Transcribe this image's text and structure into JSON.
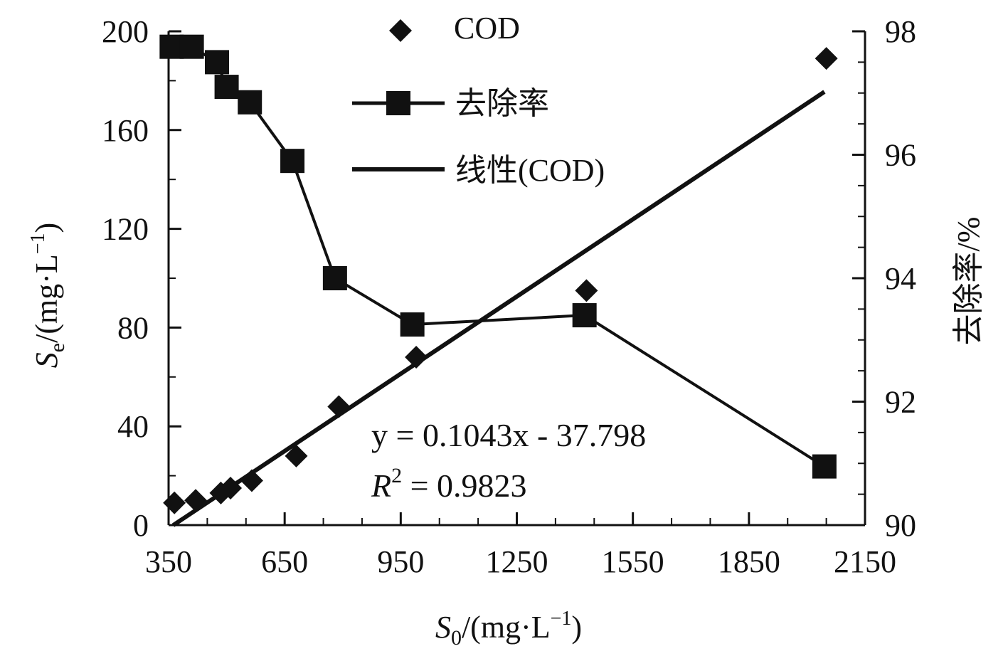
{
  "chart_data": {
    "type": "scatter",
    "x_axis": {
      "label_main": "S",
      "label_sub": "0",
      "label_unit": "/(mg·L",
      "label_sup": "−1",
      "label_close": ")",
      "range": [
        350,
        2150
      ],
      "ticks": [
        350,
        650,
        950,
        1250,
        1550,
        1850,
        2150
      ],
      "minor_step": 100
    },
    "y_axis_left": {
      "label_main": "S",
      "label_sub": "e",
      "label_unit": "/(mg·L",
      "label_sup": "−1",
      "label_close": ")",
      "range": [
        0,
        200
      ],
      "ticks": [
        0,
        40,
        80,
        120,
        160,
        200
      ],
      "minor_step": 20
    },
    "y_axis_right": {
      "label": "去除率/%",
      "range": [
        90,
        98
      ],
      "ticks": [
        90,
        92,
        94,
        96,
        98
      ],
      "minor_step": 0.5
    },
    "series": [
      {
        "name": "COD",
        "kind": "scatter",
        "axis": "left",
        "marker": "diamond",
        "x": [
          365,
          420,
          485,
          510,
          565,
          680,
          790,
          990,
          1430,
          2050
        ],
        "y": [
          9,
          10,
          13,
          15,
          18,
          28,
          48,
          68,
          95,
          189
        ]
      },
      {
        "name": "去除率",
        "kind": "line",
        "axis": "right",
        "marker": "square",
        "x": [
          358,
          410,
          475,
          500,
          560,
          670,
          780,
          980,
          1425,
          2045
        ],
        "y": [
          97.75,
          97.75,
          97.5,
          97.1,
          96.85,
          95.9,
          94.0,
          93.25,
          93.4,
          90.95
        ]
      },
      {
        "name": "线性(COD)",
        "kind": "trendline",
        "axis": "left",
        "slope": 0.1043,
        "intercept": -37.798,
        "x_range": [
          362,
          2045
        ]
      }
    ],
    "equation": "y = 0.1043x - 37.798",
    "r_squared_label": "R",
    "r_squared_sup": "2",
    "r_squared_value": " = 0.9823",
    "legend": [
      "COD",
      "去除率",
      "线性(COD)"
    ],
    "legend_position": "top-center",
    "grid": false
  }
}
